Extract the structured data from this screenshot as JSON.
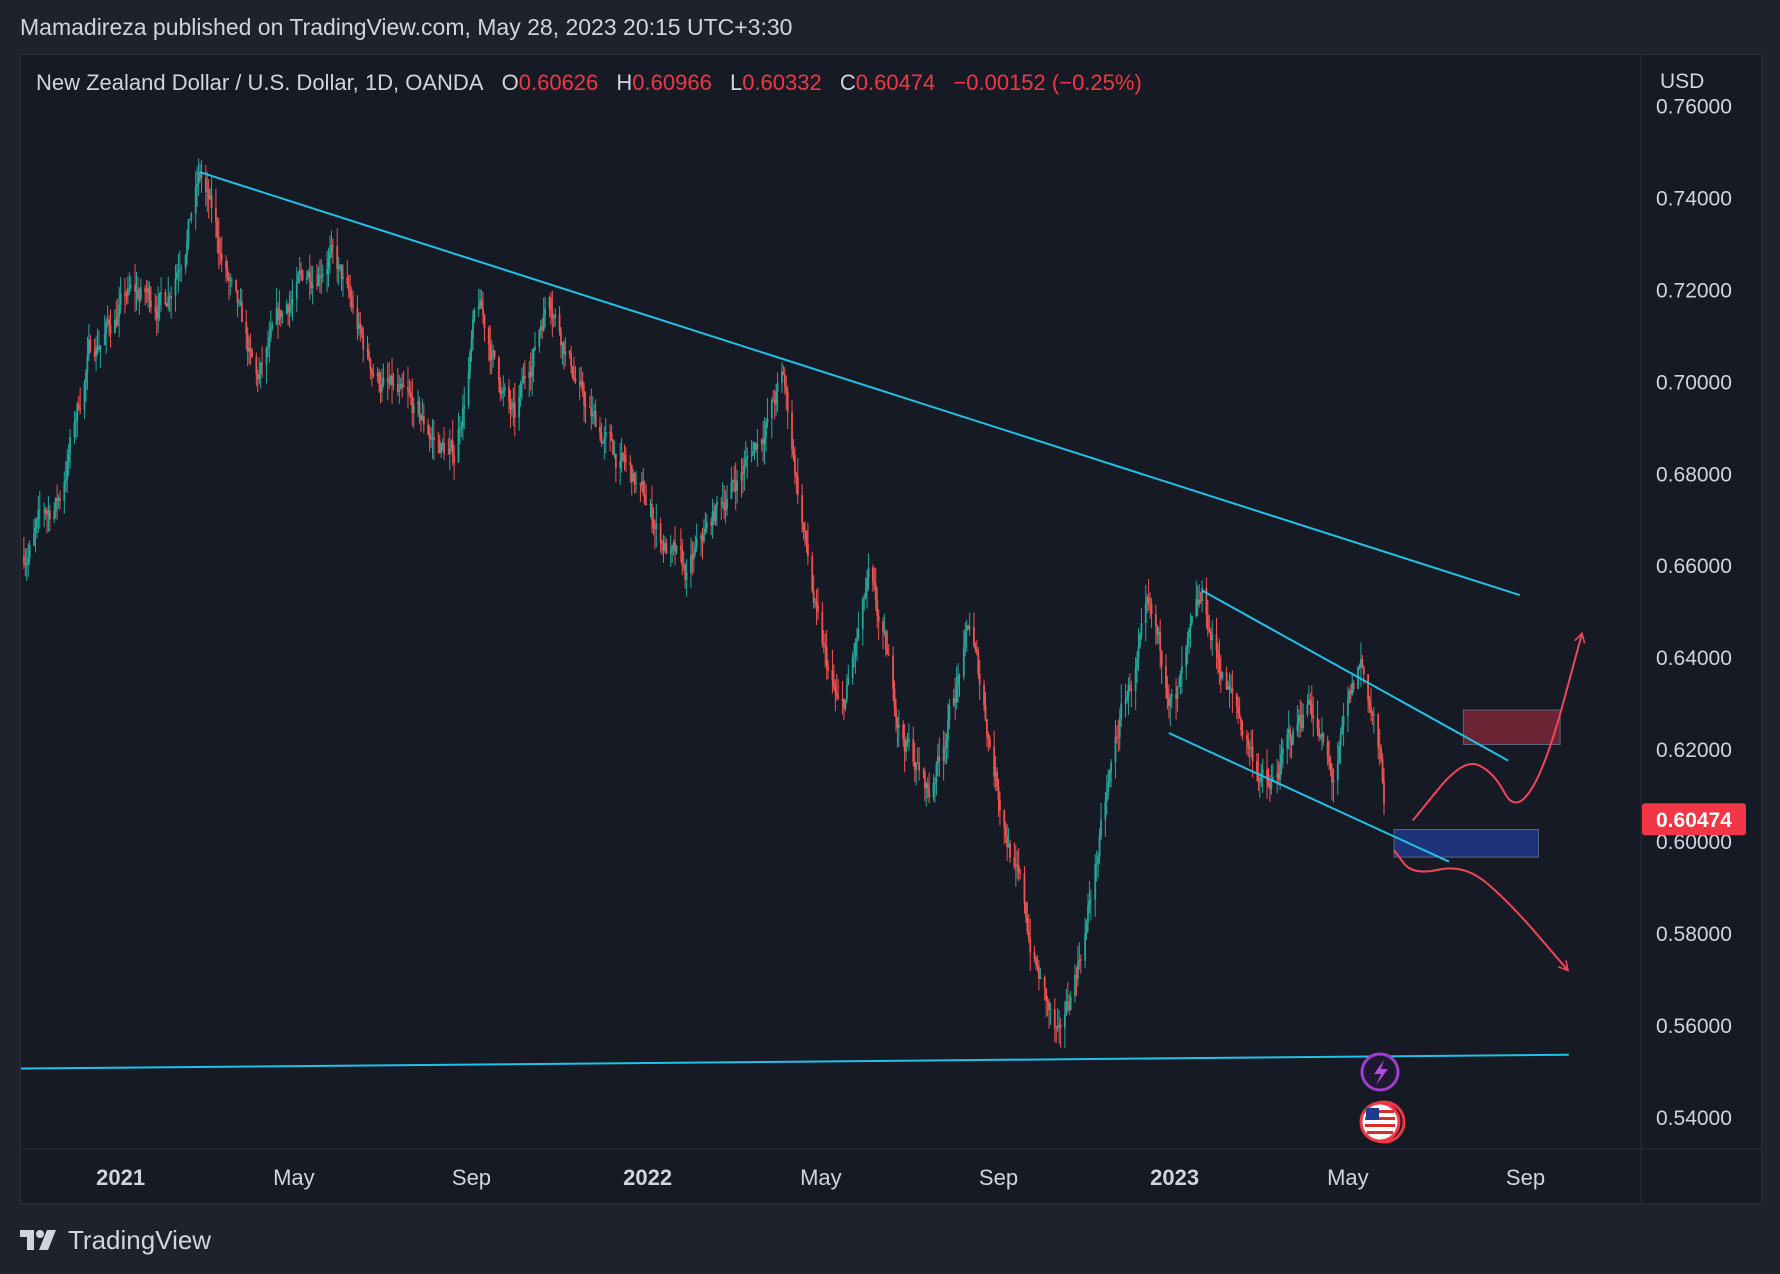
{
  "header": {
    "published_text": "Mamadireza published on TradingView.com, May 28, 2023 20:15 UTC+3:30"
  },
  "legend": {
    "symbol": "New Zealand Dollar / U.S. Dollar, 1D, OANDA",
    "open_label": "O",
    "open": "0.60626",
    "high_label": "H",
    "high": "0.60966",
    "low_label": "L",
    "low": "0.60332",
    "close_label": "C",
    "close": "0.60474",
    "change": "−0.00152 (−0.25%)"
  },
  "footer": {
    "brand": "TradingView"
  },
  "colors": {
    "background": "#161a25",
    "up": "#26a69a",
    "down": "#ef5350",
    "trendline": "#22c2e8",
    "arrow": "#f0465a",
    "supply_zone": "#7b2636",
    "demand_zone": "#1f3a8a"
  },
  "chart_data": {
    "type": "candlestick",
    "symbol": "NZDUSD",
    "currency_label": "USD",
    "y_ticks": [
      "0.76000",
      "0.74000",
      "0.72000",
      "0.70000",
      "0.68000",
      "0.66000",
      "0.64000",
      "0.62000",
      "0.60000",
      "0.58000",
      "0.56000",
      "0.54000"
    ],
    "ylim": [
      0.533,
      0.771
    ],
    "x_ticks": [
      {
        "label": "2021",
        "date": "2021-01-01",
        "bold": true
      },
      {
        "label": "May",
        "date": "2021-05-01",
        "bold": false
      },
      {
        "label": "Sep",
        "date": "2021-09-01",
        "bold": false
      },
      {
        "label": "2022",
        "date": "2022-01-01",
        "bold": true
      },
      {
        "label": "May",
        "date": "2022-05-01",
        "bold": false
      },
      {
        "label": "Sep",
        "date": "2022-09-01",
        "bold": false
      },
      {
        "label": "2023",
        "date": "2023-01-01",
        "bold": true
      },
      {
        "label": "May",
        "date": "2023-05-01",
        "bold": false
      },
      {
        "label": "Sep",
        "date": "2023-09-01",
        "bold": false
      }
    ],
    "xlim": [
      "2020-10-24",
      "2023-11-20"
    ],
    "last_price": "0.60474",
    "price_path": [
      {
        "date": "2020-10-24",
        "price": 0.662
      },
      {
        "date": "2020-11-20",
        "price": 0.675
      },
      {
        "date": "2020-12-10",
        "price": 0.706
      },
      {
        "date": "2021-01-05",
        "price": 0.718
      },
      {
        "date": "2021-02-01",
        "price": 0.718
      },
      {
        "date": "2021-02-25",
        "price": 0.745
      },
      {
        "date": "2021-03-20",
        "price": 0.717
      },
      {
        "date": "2021-04-05",
        "price": 0.698
      },
      {
        "date": "2021-04-28",
        "price": 0.717
      },
      {
        "date": "2021-05-25",
        "price": 0.73
      },
      {
        "date": "2021-06-20",
        "price": 0.705
      },
      {
        "date": "2021-07-15",
        "price": 0.694
      },
      {
        "date": "2021-08-20",
        "price": 0.683
      },
      {
        "date": "2021-09-05",
        "price": 0.716
      },
      {
        "date": "2021-10-01",
        "price": 0.69
      },
      {
        "date": "2021-10-25",
        "price": 0.721
      },
      {
        "date": "2021-11-20",
        "price": 0.693
      },
      {
        "date": "2021-12-20",
        "price": 0.679
      },
      {
        "date": "2022-01-28",
        "price": 0.656
      },
      {
        "date": "2022-02-20",
        "price": 0.673
      },
      {
        "date": "2022-03-10",
        "price": 0.682
      },
      {
        "date": "2022-04-05",
        "price": 0.7
      },
      {
        "date": "2022-04-30",
        "price": 0.643
      },
      {
        "date": "2022-05-15",
        "price": 0.625
      },
      {
        "date": "2022-06-03",
        "price": 0.655
      },
      {
        "date": "2022-06-25",
        "price": 0.625
      },
      {
        "date": "2022-07-15",
        "price": 0.61
      },
      {
        "date": "2022-08-12",
        "price": 0.646
      },
      {
        "date": "2022-09-01",
        "price": 0.612
      },
      {
        "date": "2022-09-25",
        "price": 0.575
      },
      {
        "date": "2022-10-13",
        "price": 0.554
      },
      {
        "date": "2022-11-01",
        "price": 0.583
      },
      {
        "date": "2022-11-25",
        "price": 0.627
      },
      {
        "date": "2022-12-13",
        "price": 0.646
      },
      {
        "date": "2023-01-02",
        "price": 0.63
      },
      {
        "date": "2023-01-20",
        "price": 0.65
      },
      {
        "date": "2023-02-10",
        "price": 0.63
      },
      {
        "date": "2023-03-08",
        "price": 0.61
      },
      {
        "date": "2023-04-05",
        "price": 0.632
      },
      {
        "date": "2023-04-20",
        "price": 0.612
      },
      {
        "date": "2023-05-10",
        "price": 0.638
      },
      {
        "date": "2023-05-20",
        "price": 0.625
      },
      {
        "date": "2023-05-28",
        "price": 0.6047
      }
    ],
    "drawings": {
      "trendlines": [
        {
          "name": "upper-resistance",
          "from": {
            "date": "2021-02-25",
            "price": 0.7455
          },
          "to": {
            "date": "2023-08-28",
            "price": 0.6535
          }
        },
        {
          "name": "bottom-support",
          "from": {
            "date": "2020-10-24",
            "price": 0.5505
          },
          "to": {
            "date": "2023-10-01",
            "price": 0.5535
          }
        },
        {
          "name": "channel-upper",
          "from": {
            "date": "2023-01-20",
            "price": 0.6545
          },
          "to": {
            "date": "2023-08-20",
            "price": 0.6175
          }
        },
        {
          "name": "channel-lower",
          "from": {
            "date": "2022-12-28",
            "price": 0.6235
          },
          "to": {
            "date": "2023-07-10",
            "price": 0.5955
          }
        }
      ],
      "zones": [
        {
          "name": "supply-zone",
          "from_date": "2023-07-20",
          "to_date": "2023-09-25",
          "top": 0.6285,
          "bottom": 0.621,
          "color": "#7b2636"
        },
        {
          "name": "demand-zone",
          "from_date": "2023-06-02",
          "to_date": "2023-09-10",
          "top": 0.6025,
          "bottom": 0.5965,
          "color": "#1f3a8a"
        }
      ],
      "arrows": [
        {
          "name": "bullish-scenario",
          "points": [
            {
              "date": "2023-06-15",
              "price": 0.6045
            },
            {
              "date": "2023-07-20",
              "price": 0.618
            },
            {
              "date": "2023-08-10",
              "price": 0.615
            },
            {
              "date": "2023-08-25",
              "price": 0.606
            },
            {
              "date": "2023-09-15",
              "price": 0.616
            },
            {
              "date": "2023-10-10",
              "price": 0.645
            }
          ]
        },
        {
          "name": "bearish-scenario",
          "points": [
            {
              "date": "2023-06-02",
              "price": 0.598
            },
            {
              "date": "2023-06-15",
              "price": 0.5925
            },
            {
              "date": "2023-07-20",
              "price": 0.595
            },
            {
              "date": "2023-08-20",
              "price": 0.587
            },
            {
              "date": "2023-09-30",
              "price": 0.572
            }
          ]
        }
      ]
    }
  }
}
